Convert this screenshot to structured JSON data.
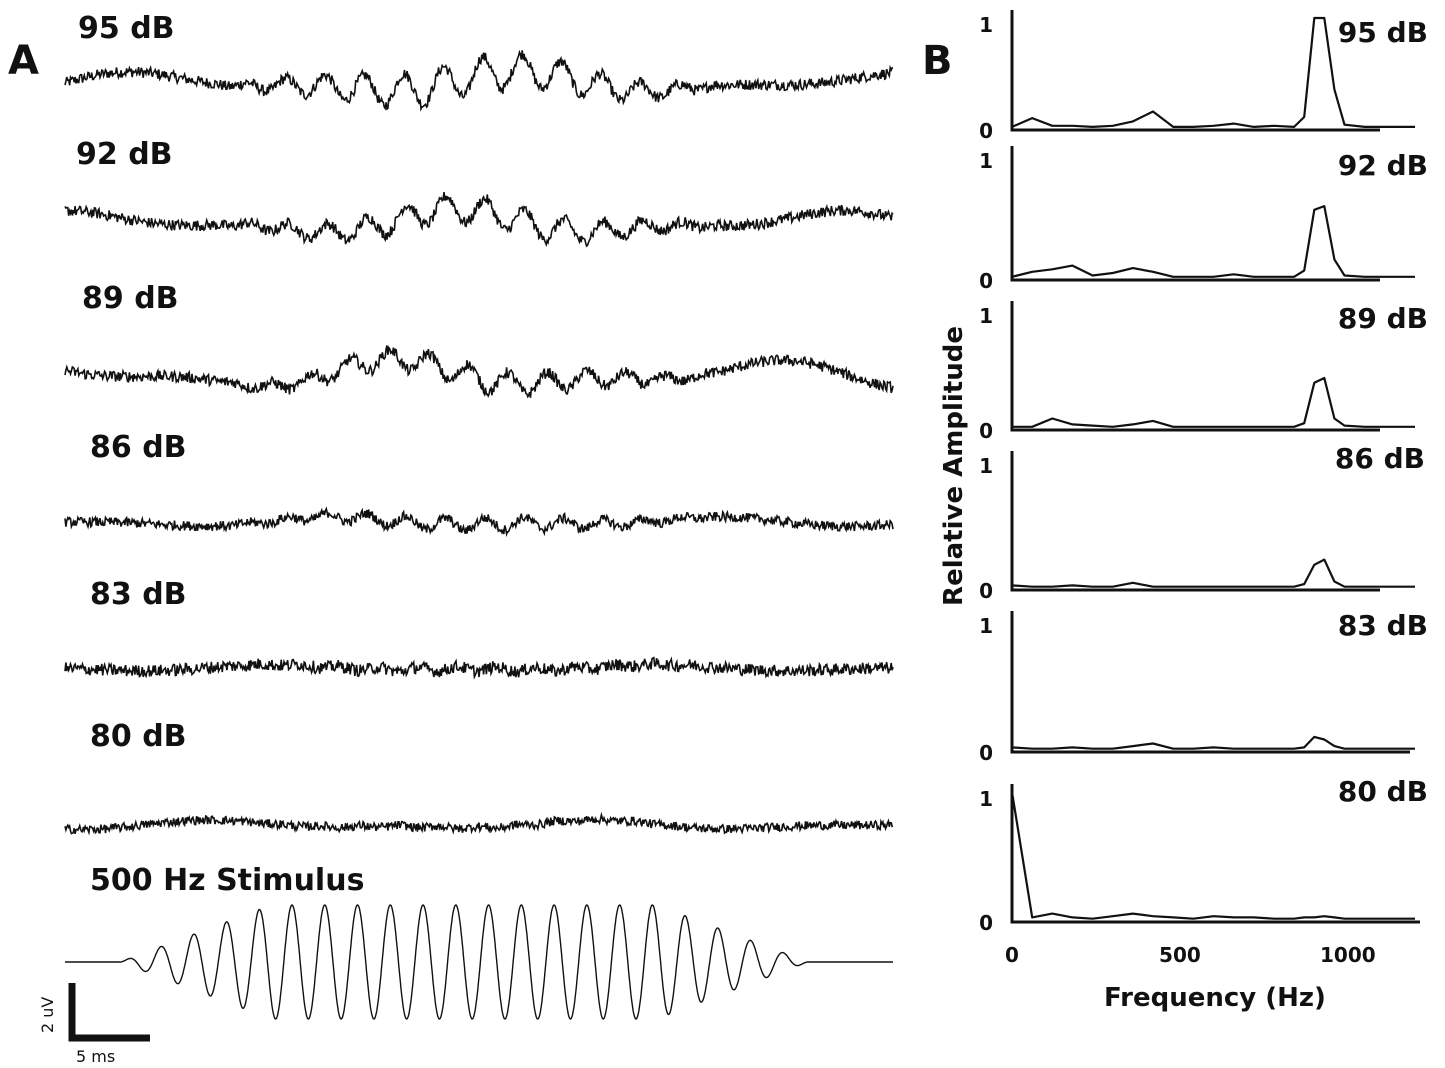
{
  "figure": {
    "panel_a_label": "A",
    "panel_b_label": "B",
    "scale_bar": {
      "voltage_label": "2 uV",
      "time_label": "5 ms"
    }
  },
  "chart_data": [
    {
      "type": "line",
      "panel": "A",
      "title": "",
      "xlabel": "",
      "ylabel": "",
      "traces": [
        {
          "label": "95 dB",
          "response_amplitude": 0.8,
          "drift": 0.35,
          "noise": 0.25
        },
        {
          "label": "92 dB",
          "response_amplitude": 0.6,
          "drift": 0.4,
          "noise": 0.25
        },
        {
          "label": "89 dB",
          "response_amplitude": 0.5,
          "drift": 0.45,
          "noise": 0.25
        },
        {
          "label": "86 dB",
          "response_amplitude": 0.28,
          "drift": 0.15,
          "noise": 0.22
        },
        {
          "label": "83 dB",
          "response_amplitude": 0.1,
          "drift": 0.1,
          "noise": 0.28
        },
        {
          "label": "80 dB",
          "response_amplitude": 0.05,
          "drift": 0.15,
          "noise": 0.2
        }
      ],
      "stimulus": {
        "label": "500 Hz Stimulus",
        "frequency_hz": 500,
        "cycles": 21
      }
    },
    {
      "type": "line",
      "panel": "B",
      "title": "",
      "xlabel": "Frequency (Hz)",
      "ylabel": "Relative Amplitude",
      "xlim": [
        0,
        1200
      ],
      "ylim": [
        0,
        1
      ],
      "xticks": [
        "0",
        "500",
        "1000"
      ],
      "yticks": [
        "0",
        "1"
      ],
      "x": [
        0,
        60,
        120,
        180,
        240,
        300,
        360,
        420,
        480,
        540,
        600,
        660,
        720,
        780,
        840,
        870,
        900,
        930,
        960,
        990,
        1050,
        1100,
        1150,
        1200
      ],
      "series": [
        {
          "name": "95 dB",
          "values": [
            0.01,
            0.09,
            0.02,
            0.02,
            0.01,
            0.02,
            0.06,
            0.15,
            0.01,
            0.01,
            0.02,
            0.04,
            0.01,
            0.02,
            0.01,
            0.1,
            1.0,
            1.0,
            0.35,
            0.03,
            0.01,
            0.01,
            0.01,
            0.01
          ]
        },
        {
          "name": "92 dB",
          "values": [
            0.01,
            0.05,
            0.07,
            0.1,
            0.02,
            0.04,
            0.08,
            0.05,
            0.01,
            0.01,
            0.01,
            0.03,
            0.01,
            0.01,
            0.01,
            0.06,
            0.55,
            0.58,
            0.15,
            0.02,
            0.01,
            0.01,
            0.01,
            0.01
          ]
        },
        {
          "name": "89 dB",
          "values": [
            0.01,
            0.01,
            0.08,
            0.03,
            0.02,
            0.01,
            0.03,
            0.06,
            0.01,
            0.01,
            0.01,
            0.01,
            0.01,
            0.01,
            0.01,
            0.04,
            0.38,
            0.42,
            0.08,
            0.02,
            0.01,
            0.01,
            0.01,
            0.01
          ]
        },
        {
          "name": "86 dB",
          "values": [
            0.02,
            0.01,
            0.01,
            0.02,
            0.01,
            0.01,
            0.04,
            0.01,
            0.01,
            0.01,
            0.01,
            0.01,
            0.01,
            0.01,
            0.01,
            0.03,
            0.18,
            0.22,
            0.05,
            0.01,
            0.01,
            0.01,
            0.01,
            0.01
          ]
        },
        {
          "name": "83 dB",
          "values": [
            0.02,
            0.01,
            0.01,
            0.02,
            0.01,
            0.01,
            0.03,
            0.05,
            0.01,
            0.01,
            0.02,
            0.01,
            0.01,
            0.01,
            0.01,
            0.02,
            0.1,
            0.08,
            0.03,
            0.01,
            0.01,
            0.01,
            0.01,
            0.01
          ]
        },
        {
          "name": "80 dB",
          "values": [
            1.0,
            0.02,
            0.05,
            0.02,
            0.01,
            0.03,
            0.05,
            0.03,
            0.02,
            0.01,
            0.03,
            0.02,
            0.02,
            0.01,
            0.01,
            0.02,
            0.02,
            0.03,
            0.02,
            0.01,
            0.01,
            0.01,
            0.01,
            0.01
          ]
        }
      ]
    }
  ]
}
